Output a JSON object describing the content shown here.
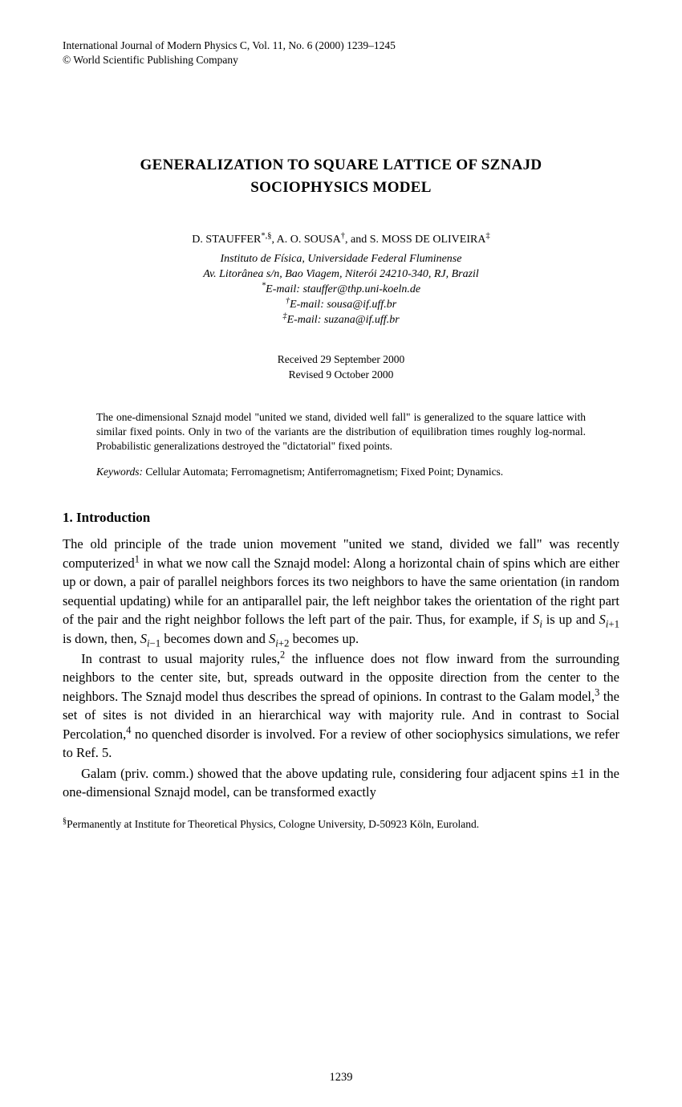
{
  "journal_line1": "International Journal of Modern Physics C, Vol. 11, No. 6 (2000) 1239–1245",
  "journal_line2": "© World Scientific Publishing Company",
  "title_line1": "GENERALIZATION TO SQUARE LATTICE OF SZNAJD",
  "title_line2": "SOCIOPHYSICS MODEL",
  "authors_html": "D. STAUFFER<sup>*,§</sup>, A. O. SOUSA<sup>†</sup>, and S. MOSS DE OLIVEIRA<sup>‡</sup>",
  "affil_line1": "Instituto de Física, Universidade Federal Fluminense",
  "affil_line2": "Av. Litorânea s/n, Bao Viagem, Niterói 24210-340, RJ, Brazil",
  "email1_html": "<sup>*</sup>E-mail: stauffer@thp.uni-koeln.de",
  "email2_html": "<sup>†</sup>E-mail: sousa@if.uff.br",
  "email3_html": "<sup>‡</sup>E-mail: suzana@if.uff.br",
  "received": "Received 29 September 2000",
  "revised": "Revised 9 October 2000",
  "abstract": "The one-dimensional Sznajd model \"united we stand, divided well fall\" is generalized to the square lattice with similar fixed points. Only in two of the variants are the distribution of equilibration times roughly log-normal. Probabilistic generalizations destroyed the \"dictatorial\" fixed points.",
  "keywords_label": "Keywords:",
  "keywords_text": " Cellular Automata; Ferromagnetism; Antiferromagnetism; Fixed Point; Dynamics.",
  "section_number": "1.",
  "section_title": " Introduction",
  "para1_html": "The old principle of the trade union movement \"united we stand, divided we fall\" was recently computerized<sup>1</sup> in what we now call the Sznajd model: Along a horizontal chain of spins which are either up or down, a pair of parallel neighbors forces its two neighbors to have the same orientation (in random sequential updating) while for an antiparallel pair, the left neighbor takes the orientation of the right part of the pair and the right neighbor follows the left part of the pair. Thus, for example, if <i>S<sub>i</sub></i> is up and <i>S</i><sub><i>i</i>+1</sub> is down, then, <i>S</i><sub><i>i</i>−1</sub> becomes down and <i>S</i><sub><i>i</i>+2</sub> becomes up.",
  "para2_html": "In contrast to usual majority rules,<sup>2</sup> the influence does not flow inward from the surrounding neighbors to the center site, but, spreads outward in the opposite direction from the center to the neighbors. The Sznajd model thus describes the spread of opinions. In contrast to the Galam model,<sup>3</sup> the set of sites is not divided in an hierarchical way with majority rule. And in contrast to Social Percolation,<sup>4</sup> no quenched disorder is involved. For a review of other sociophysics simulations, we refer to Ref. 5.",
  "para3_html": "Galam (priv. comm.) showed that the above updating rule, considering four adjacent spins ±1 in the one-dimensional Sznajd model, can be transformed exactly",
  "footnote_html": "<sup>§</sup>Permanently at Institute for Theoretical Physics, Cologne University, D-50923 Köln, Euroland.",
  "page_number": "1239",
  "colors": {
    "text": "#000000",
    "background": "#ffffff"
  },
  "typography": {
    "body_font": "Times New Roman",
    "body_size_pt": 12,
    "small_size_pt": 10,
    "title_size_pt": 14
  }
}
